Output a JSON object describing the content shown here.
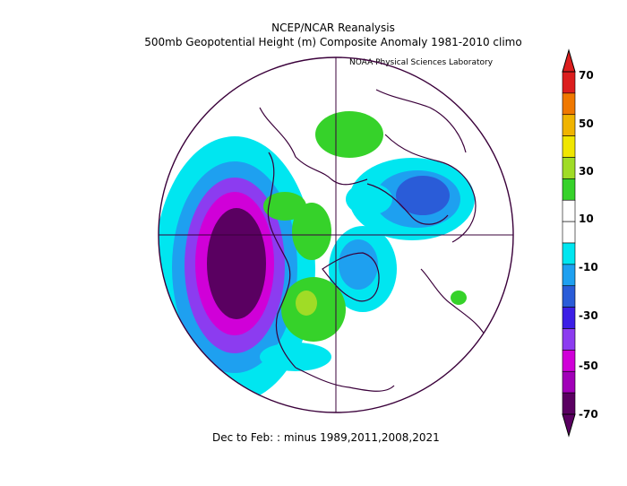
{
  "header": {
    "title": "NCEP/NCAR Reanalysis",
    "subtitle": "500mb Geopotential Height (m) Composite Anomaly 1981-2010 climo",
    "credit": "NOAA Physical Sciences Laboratory"
  },
  "footer": {
    "caption": "Dec to Feb: :  minus 1989,2011,2008,2021"
  },
  "map": {
    "projection": "north-polar-stereographic",
    "variable": "500mb geopotential height anomaly",
    "units": "m",
    "features": [
      {
        "kind": "negative",
        "level": -70,
        "region": "North Pacific / Gulf of Alaska"
      },
      {
        "kind": "negative",
        "level": -30,
        "region": "Eastern Europe / Scandinavia"
      },
      {
        "kind": "negative",
        "level": -20,
        "region": "Greenland / Baffin"
      },
      {
        "kind": "positive",
        "level": 20,
        "region": "Western Canada"
      },
      {
        "kind": "positive",
        "level": 10,
        "region": "Siberia"
      },
      {
        "kind": "positive",
        "level": 10,
        "region": "Eastern United States"
      }
    ]
  },
  "colorbar": {
    "levels": [
      -70,
      -60,
      -50,
      -40,
      -30,
      -20,
      -10,
      10,
      20,
      30,
      40,
      50,
      60,
      70
    ],
    "colors": [
      "#5a0061",
      "#a100b8",
      "#d000d8",
      "#8c3cf0",
      "#3c1ee6",
      "#2a5cd8",
      "#1ea0f0",
      "#00e6f0",
      "#ffffff",
      "#ffffff",
      "#36d22a",
      "#a0dc26",
      "#f0e600",
      "#f0b400",
      "#f07800",
      "#dc1e1e"
    ],
    "tick_labels": [
      "70",
      "50",
      "30",
      "10",
      "-10",
      "-30",
      "-50",
      "-70"
    ]
  }
}
